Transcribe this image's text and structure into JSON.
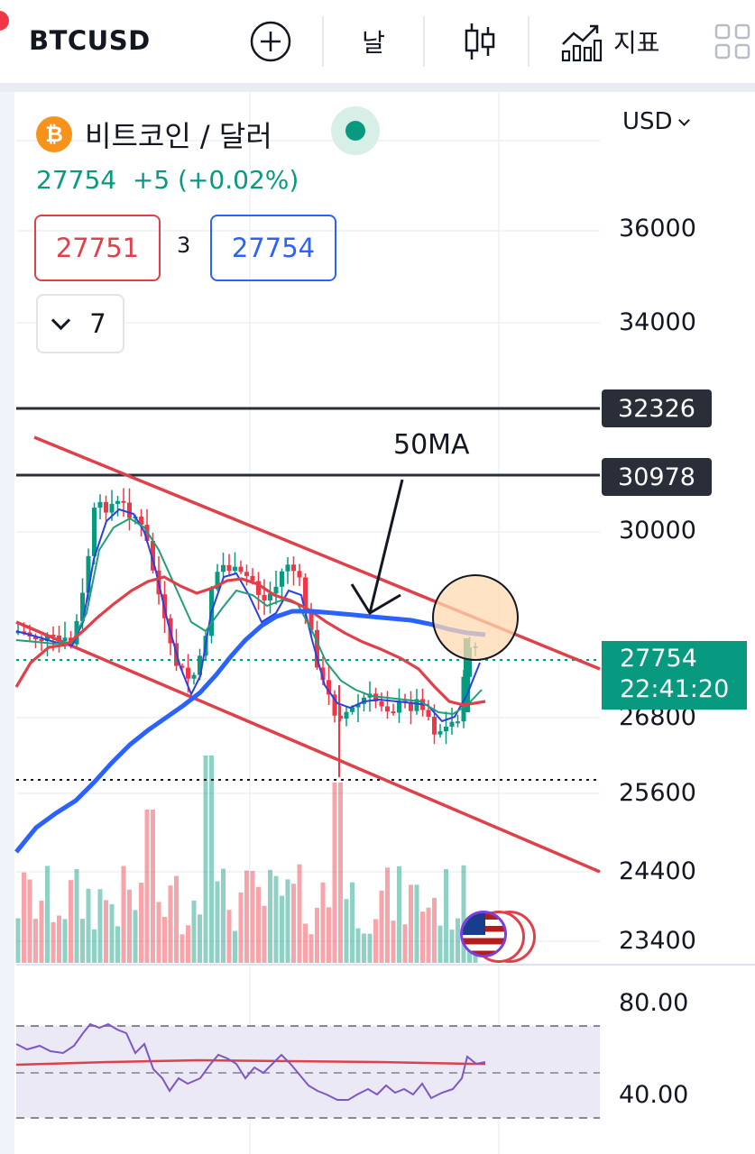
{
  "toolbar": {
    "symbol": "BTCUSD",
    "add_icon": "plus-circle-icon",
    "interval_label": "날",
    "chart_type_icon": "candlestick-icon",
    "indicators_label": "지표",
    "layout_icon": "grid-icon"
  },
  "legend": {
    "pair_name": "비트코인 / 달러",
    "price_line": "27754  +5 (+0.02%)",
    "bid": "27751",
    "spread": "3",
    "ask": "27754",
    "indicator_count": "7"
  },
  "currency": "USD",
  "price_axis": {
    "labels": [
      "36000",
      "34000",
      "30000",
      "26800",
      "25600",
      "24400",
      "23400"
    ]
  },
  "horizontal_lines": {
    "upper": "32326",
    "lower": "30978"
  },
  "last_price": {
    "price": "27754",
    "countdown": "22:41:20"
  },
  "annotation": {
    "text": "50MA"
  },
  "rsi_axis": {
    "upper": "80.00",
    "lower": "40.00"
  },
  "colors": {
    "up": "#089981",
    "down": "#f23645",
    "ma50": "#2962ff",
    "trend_line": "#e0404a",
    "rsi_line": "#7e57c2",
    "horizontal_line": "#2a2e39"
  }
}
